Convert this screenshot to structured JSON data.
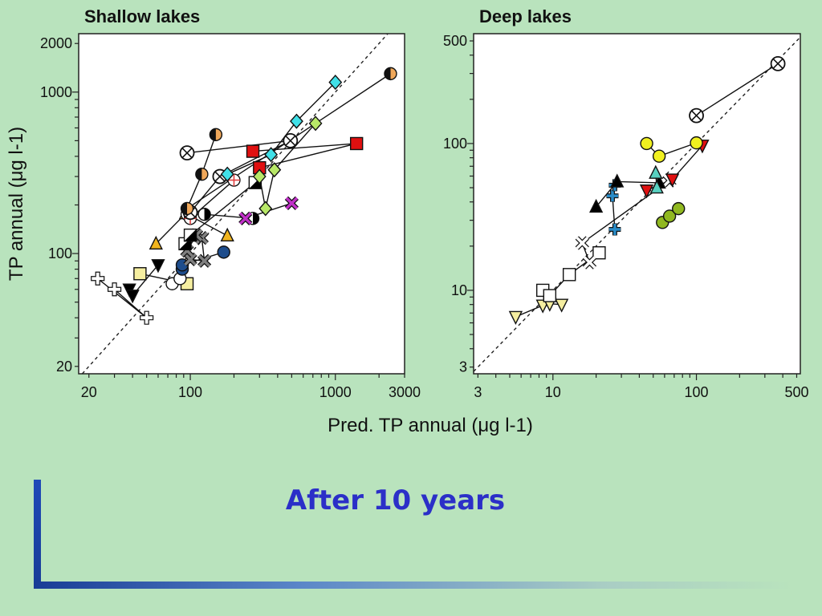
{
  "slide": {
    "title": "After 10 years",
    "accent_color": "#2b2fc8",
    "background": "#b9e3bd"
  },
  "figure": {
    "shared_xlabel": "Pred. TP annual (μg l-1)",
    "shared_ylabel": "TP annual (μg l-1)"
  },
  "chart_data": [
    {
      "type": "scatter",
      "title": "Shallow lakes",
      "xlabel": "Pred. TP annual (μg l-1)",
      "ylabel": "TP annual (μg l-1)",
      "x_scale": "log",
      "y_scale": "log",
      "xlim": [
        17,
        3000
      ],
      "ylim": [
        18,
        2300
      ],
      "x_ticks": [
        "20",
        "100",
        "1000",
        "3000"
      ],
      "y_ticks": [
        "20",
        "100",
        "1000",
        "2000"
      ],
      "reference_line": "1:1 dashed",
      "series": [
        {
          "marker": "cross-open",
          "fill": "#ffffff",
          "points": [
            [
              23,
              70
            ],
            [
              50,
              40
            ],
            [
              30,
              60
            ]
          ]
        },
        {
          "marker": "triangle-down",
          "fill": "#000000",
          "points": [
            [
              38,
              60
            ],
            [
              40,
              55
            ],
            [
              60,
              85
            ]
          ]
        },
        {
          "marker": "square",
          "fill": "#f5eea0",
          "points": [
            [
              45,
              75
            ],
            [
              95,
              65
            ]
          ]
        },
        {
          "marker": "circle",
          "fill": "#ffffff",
          "points": [
            [
              75,
              65
            ],
            [
              85,
              70
            ]
          ]
        },
        {
          "marker": "circle",
          "fill": "#1e4d8c",
          "points": [
            [
              88,
              80
            ],
            [
              88,
              85
            ],
            [
              170,
              102
            ]
          ]
        },
        {
          "marker": "triangle",
          "fill": "#f0b41e",
          "points": [
            [
              58,
              115
            ],
            [
              93,
              177
            ],
            [
              180,
              129
            ]
          ]
        },
        {
          "marker": "x",
          "fill": "#808080",
          "points": [
            [
              100,
              92
            ],
            [
              125,
              90
            ],
            [
              120,
              125
            ],
            [
              110,
              130
            ],
            [
              95,
              104
            ]
          ]
        },
        {
          "marker": "square-half",
          "fill": "#000000",
          "points": [
            [
              92,
              115
            ],
            [
              100,
              130
            ],
            [
              280,
              275
            ]
          ]
        },
        {
          "marker": "circle-half-v",
          "fill": "#000000",
          "points": [
            [
              95,
              175
            ],
            [
              125,
              175
            ],
            [
              270,
              165
            ]
          ]
        },
        {
          "marker": "circle-plus",
          "fill": "#e04040",
          "points": [
            [
              100,
              165
            ],
            [
              200,
              285
            ]
          ]
        },
        {
          "marker": "circle-x",
          "fill": "#ffffff",
          "points": [
            [
              95,
              420
            ],
            [
              490,
              500
            ],
            [
              160,
              300
            ],
            [
              100,
              180
            ]
          ]
        },
        {
          "marker": "circle-half-h",
          "fill": "#f0a85a",
          "points": [
            [
              150,
              545
            ],
            [
              120,
              310
            ],
            [
              95,
              190
            ],
            [
              2400,
              1300
            ]
          ]
        },
        {
          "marker": "square",
          "fill": "#e01010",
          "points": [
            [
              270,
              430
            ],
            [
              1400,
              480
            ],
            [
              300,
              340
            ]
          ]
        },
        {
          "marker": "diamond",
          "fill": "#40e0e8",
          "points": [
            [
              1000,
              1150
            ],
            [
              540,
              660
            ],
            [
              360,
              410
            ],
            [
              180,
              310
            ]
          ]
        },
        {
          "marker": "diamond",
          "fill": "#b8e868",
          "points": [
            [
              730,
              640
            ],
            [
              380,
              330
            ],
            [
              330,
              190
            ],
            [
              300,
              300
            ]
          ]
        },
        {
          "marker": "x",
          "fill": "#c030c8",
          "points": [
            [
              240,
              165
            ],
            [
              500,
              205
            ]
          ]
        }
      ]
    },
    {
      "type": "scatter",
      "title": "Deep lakes",
      "xlabel": "Pred. TP annual (μg l-1)",
      "ylabel": "TP annual (μg l-1)",
      "x_scale": "log",
      "y_scale": "log",
      "xlim": [
        2.8,
        530
      ],
      "ylim": [
        2.7,
        560
      ],
      "x_ticks": [
        "3",
        "10",
        "100",
        "500"
      ],
      "y_ticks": [
        "3",
        "10",
        "100",
        "500"
      ],
      "reference_line": "1:1 dashed",
      "series": [
        {
          "marker": "triangle-down",
          "fill": "#f5eea0",
          "points": [
            [
              5.5,
              6.6
            ],
            [
              8.5,
              7.9
            ],
            [
              9.5,
              8.1
            ],
            [
              11.5,
              8
            ]
          ]
        },
        {
          "marker": "square",
          "fill": "#ffffff",
          "points": [
            [
              8.5,
              10
            ],
            [
              9.5,
              9.2
            ],
            [
              13,
              12.8
            ],
            [
              21,
              18
            ]
          ]
        },
        {
          "marker": "x",
          "fill": "#ffffff",
          "points": [
            [
              18,
              15.5
            ],
            [
              16,
              21
            ],
            [
              65,
              56
            ]
          ]
        },
        {
          "marker": "cross",
          "fill": "#2a8cc8",
          "points": [
            [
              27,
              26
            ],
            [
              26,
              44
            ],
            [
              27,
              52
            ]
          ]
        },
        {
          "marker": "triangle",
          "fill": "#000000",
          "points": [
            [
              20,
              37
            ],
            [
              28,
              55
            ],
            [
              55,
              54
            ]
          ]
        },
        {
          "marker": "triangle-down",
          "fill": "#e01010",
          "points": [
            [
              45,
              48
            ],
            [
              68,
              57
            ],
            [
              110,
              97
            ]
          ]
        },
        {
          "marker": "triangle",
          "fill": "#58d0c0",
          "points": [
            [
              52,
              63
            ],
            [
              53,
              50
            ]
          ]
        },
        {
          "marker": "circle",
          "fill": "#f0f020",
          "points": [
            [
              45,
              100
            ],
            [
              55,
              82
            ],
            [
              100,
              101
            ]
          ]
        },
        {
          "marker": "circle",
          "fill": "#90b820",
          "points": [
            [
              58,
              29
            ],
            [
              65,
              32
            ],
            [
              75,
              36
            ]
          ]
        },
        {
          "marker": "circle-x",
          "fill": "#ffffff",
          "points": [
            [
              100,
              155
            ],
            [
              370,
              350
            ]
          ]
        }
      ]
    }
  ]
}
